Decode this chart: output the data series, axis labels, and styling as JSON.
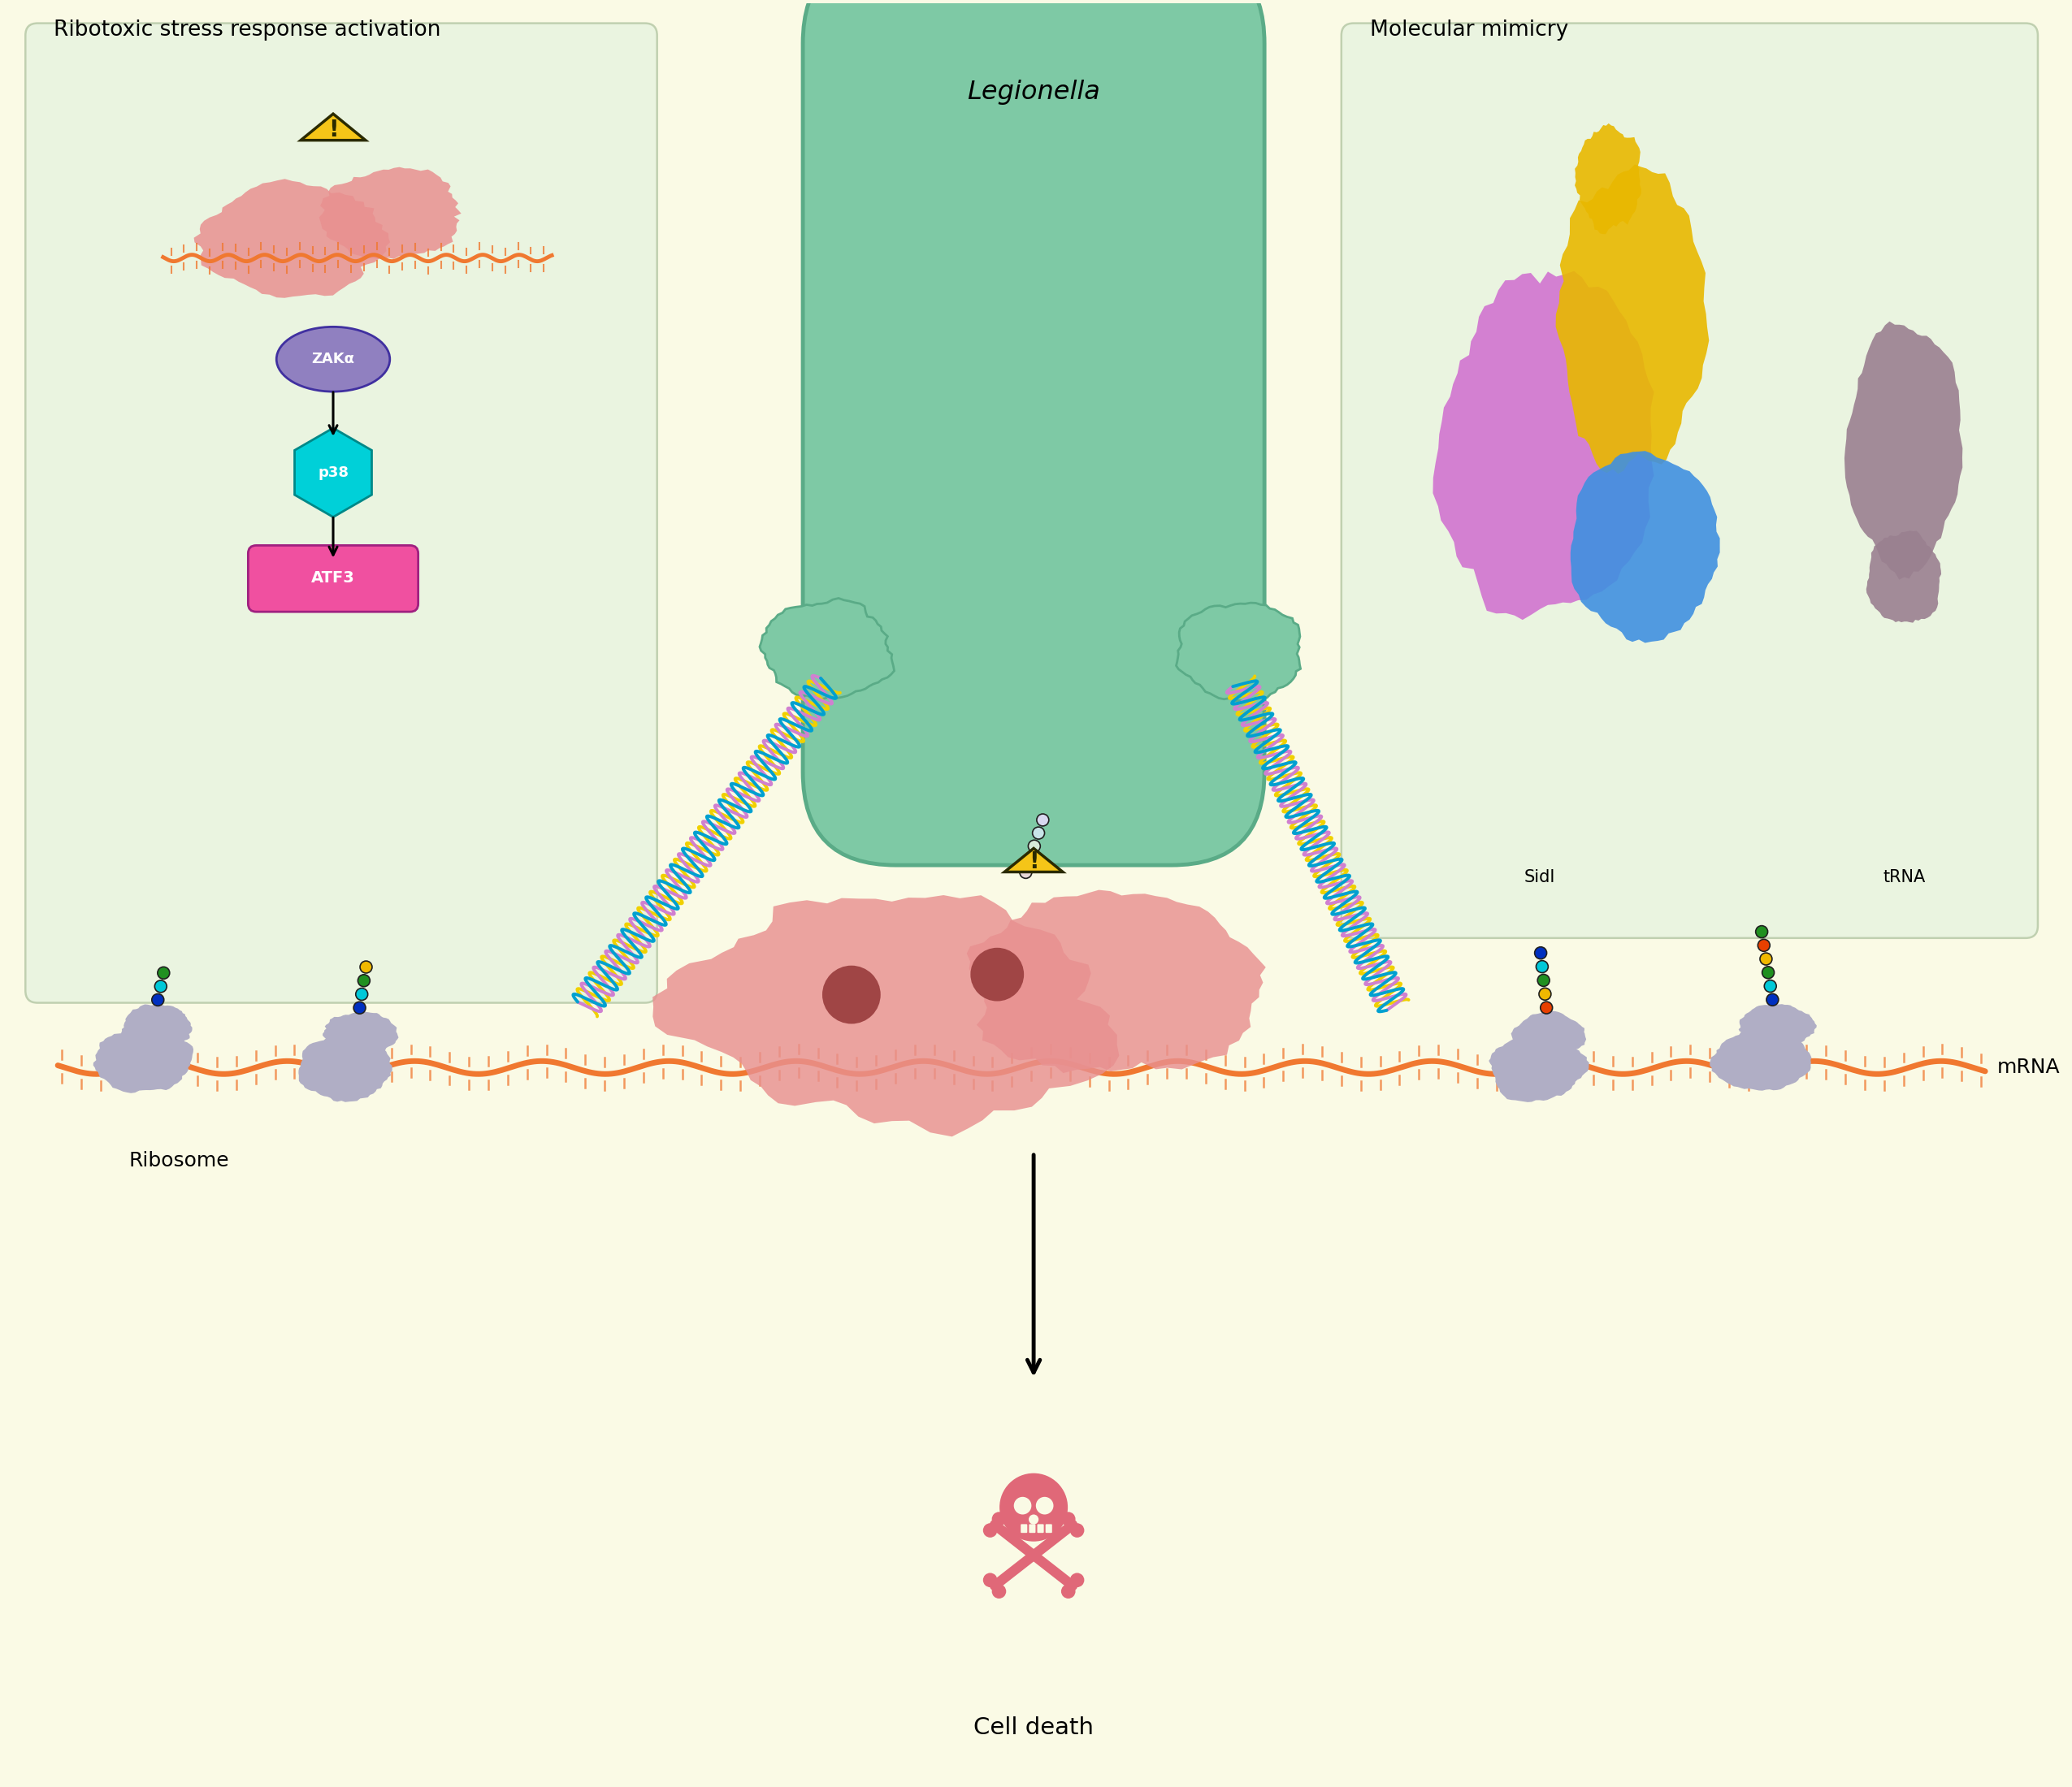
{
  "background_color": "#fafae5",
  "green_box_color": "#eaf4e0",
  "legionella_body": "#7ec9a5",
  "legionella_edge": "#5aab87",
  "ribosome_fill": "#b0aec5",
  "mRNA_color": "#f07830",
  "cell_fill": "#e89090",
  "nucleus_color": "#a04545",
  "warn_yellow": "#f5c518",
  "warn_border": "#2a2a00",
  "zak_fill": "#9080c0",
  "p38_fill": "#00d0d8",
  "atf3_fill": "#f050a0",
  "skull_color": "#e06878",
  "helix_col1": "#f0d000",
  "helix_col2": "#d080d0",
  "helix_col3": "#00a0d0",
  "sidl_magenta": "#d070d0",
  "sidl_blue": "#4090e0",
  "sidl_yellow": "#e8b800",
  "trna_shape": "#9a8090",
  "label_ribotoxic": "Ribotoxic stress response activation",
  "label_molecular": "Molecular mimicry",
  "label_legionella": "Legionella",
  "label_ribosome": "Ribosome",
  "label_mRNA": "mRNA",
  "label_celldeath": "Cell death",
  "label_zak": "ZAKα",
  "label_p38": "p38",
  "label_atf3": "ATF3",
  "label_sidl": "SidI",
  "label_trna": "tRNA",
  "tRNA_sets": [
    [
      "#0030c0",
      "#00c8d8",
      "#209020"
    ],
    [
      "#0030c0",
      "#00c8d8",
      "#209020",
      "#f0b800"
    ],
    [
      "#e84000",
      "#f0b800",
      "#209020",
      "#00c8d8",
      "#0030c0"
    ],
    [
      "#0030c0",
      "#00c8d8",
      "#209020",
      "#f0b800",
      "#e84000",
      "#209020"
    ],
    [
      "#209020",
      "#00c8d8",
      "#0030c0",
      "#f0b800",
      "#e84000",
      "#209020",
      "#00c8d8"
    ]
  ]
}
